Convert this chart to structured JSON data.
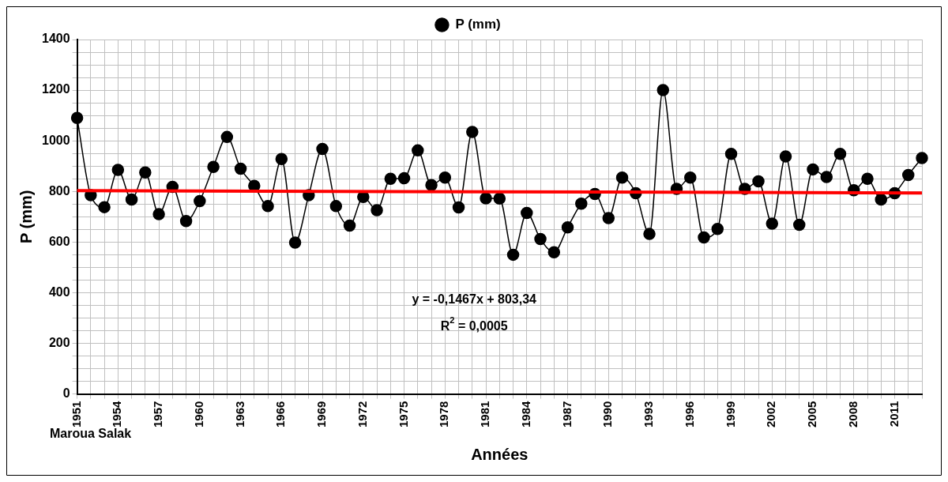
{
  "chart_data": {
    "type": "line",
    "xlabel": "Années",
    "ylabel": "P (mm)",
    "categories": [
      "1951",
      null,
      null,
      "1954",
      null,
      null,
      "1957",
      null,
      null,
      "1960",
      null,
      null,
      "1963",
      null,
      null,
      "1966",
      null,
      null,
      "1969",
      null,
      null,
      "1972",
      null,
      null,
      "1975",
      null,
      null,
      "1978",
      null,
      null,
      "1981",
      null,
      null,
      "1984",
      null,
      null,
      "1987",
      null,
      null,
      "1990",
      null,
      null,
      "1993",
      null,
      null,
      "1996",
      null,
      null,
      "1999",
      null,
      null,
      "2002",
      null,
      null,
      "2005",
      null,
      null,
      "2008",
      null,
      null,
      "2011",
      null,
      null
    ],
    "series": [
      {
        "name": "P (mm)",
        "color": "#000000",
        "marker": "circle",
        "line_style": "solid",
        "values": [
          1090,
          785,
          738,
          885,
          768,
          875,
          710,
          818,
          683,
          762,
          897,
          1015,
          890,
          822,
          742,
          928,
          598,
          785,
          968,
          742,
          665,
          778,
          726,
          850,
          852,
          962,
          825,
          855,
          737,
          1035,
          773,
          772,
          550,
          715,
          612,
          560,
          658,
          752,
          790,
          695,
          855,
          793,
          632,
          1200,
          810,
          855,
          618,
          652,
          948,
          810,
          840,
          673,
          938,
          668,
          887,
          857,
          948,
          805,
          850,
          768,
          793,
          865,
          932
        ]
      },
      {
        "type": "line",
        "color": "#ff0000",
        "marker": "none",
        "line_style": "solid",
        "values": [
          803,
          null,
          null,
          null,
          null,
          null,
          null,
          null,
          null,
          null,
          null,
          null,
          null,
          null,
          null,
          null,
          null,
          null,
          null,
          null,
          null,
          null,
          null,
          null,
          null,
          null,
          null,
          null,
          null,
          null,
          null,
          null,
          null,
          null,
          null,
          null,
          null,
          null,
          null,
          null,
          null,
          null,
          null,
          null,
          null,
          null,
          null,
          null,
          null,
          null,
          null,
          null,
          null,
          null,
          null,
          null,
          null,
          null,
          null,
          null,
          null,
          null,
          794
        ]
      }
    ],
    "ylim": [
      0,
      1400
    ],
    "yticks": [
      0,
      {
        "value": 50,
        "label": null
      },
      {
        "value": 100,
        "label": null
      },
      {
        "value": 150,
        "label": null
      },
      200,
      {
        "value": 250,
        "label": null
      },
      {
        "value": 300,
        "label": null
      },
      {
        "value": 350,
        "label": null
      },
      400,
      {
        "value": 450,
        "label": null
      },
      {
        "value": 500,
        "label": null
      },
      {
        "value": 550,
        "label": null
      },
      600,
      {
        "value": 650,
        "label": null
      },
      {
        "value": 700,
        "label": null
      },
      {
        "value": 750,
        "label": null
      },
      800,
      {
        "value": 850,
        "label": null
      },
      {
        "value": 900,
        "label": null
      },
      {
        "value": 950,
        "label": null
      },
      1000,
      {
        "value": 1050,
        "label": null
      },
      {
        "value": 1100,
        "label": null
      },
      {
        "value": 1150,
        "label": null
      },
      1200,
      {
        "value": 1250,
        "label": null
      },
      {
        "value": 1300,
        "label": null
      },
      {
        "value": 1350,
        "label": null
      },
      1400
    ],
    "grid": true,
    "legend": "top",
    "annotations": [
      "y = -0,1467x + 803,34",
      "R$^{2}$ = 0,0005",
      "Maroua Salak"
    ]
  }
}
